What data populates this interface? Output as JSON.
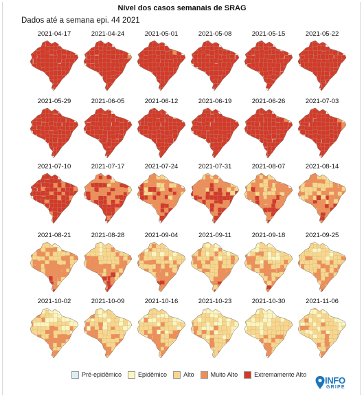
{
  "title": "Nível dos casos semanais de SRAG",
  "subtitle": "Dados até a semana epi. 44 2021",
  "colors": {
    "pre_epidemico": "#dbeef5",
    "epidemico": "#fbf6c0",
    "alto": "#f8d78c",
    "muito_alto": "#ef8e57",
    "extremamente_alto": "#d23a2a"
  },
  "legend": [
    {
      "label": "Pré-epidêmico",
      "color": "#dbeef5"
    },
    {
      "label": "Epidêmico",
      "color": "#fbf6c0"
    },
    {
      "label": "Alto",
      "color": "#f8d78c"
    },
    {
      "label": "Muito Alto",
      "color": "#ef8e57"
    },
    {
      "label": "Extremamente Alto",
      "color": "#d23a2a"
    }
  ],
  "maps": [
    {
      "date": "2021-04-17",
      "level": 4.4
    },
    {
      "date": "2021-04-24",
      "level": 4.4
    },
    {
      "date": "2021-05-01",
      "level": 4.5
    },
    {
      "date": "2021-05-08",
      "level": 4.5
    },
    {
      "date": "2021-05-15",
      "level": 4.5
    },
    {
      "date": "2021-05-22",
      "level": 4.5
    },
    {
      "date": "2021-05-29",
      "level": 4.5
    },
    {
      "date": "2021-06-05",
      "level": 4.4
    },
    {
      "date": "2021-06-12",
      "level": 4.5
    },
    {
      "date": "2021-06-19",
      "level": 4.4
    },
    {
      "date": "2021-06-26",
      "level": 4.4
    },
    {
      "date": "2021-07-03",
      "level": 4.3
    },
    {
      "date": "2021-07-10",
      "level": 4.0
    },
    {
      "date": "2021-07-17",
      "level": 3.6
    },
    {
      "date": "2021-07-24",
      "level": 3.2
    },
    {
      "date": "2021-07-31",
      "level": 3.3
    },
    {
      "date": "2021-08-07",
      "level": 3.0
    },
    {
      "date": "2021-08-14",
      "level": 3.0
    },
    {
      "date": "2021-08-21",
      "level": 2.6
    },
    {
      "date": "2021-08-28",
      "level": 2.6
    },
    {
      "date": "2021-09-04",
      "level": 2.4
    },
    {
      "date": "2021-09-11",
      "level": 2.4
    },
    {
      "date": "2021-09-18",
      "level": 2.3
    },
    {
      "date": "2021-09-25",
      "level": 2.3
    },
    {
      "date": "2021-10-02",
      "level": 2.1
    },
    {
      "date": "2021-10-09",
      "level": 2.2
    },
    {
      "date": "2021-10-16",
      "level": 2.1
    },
    {
      "date": "2021-10-23",
      "level": 2.0
    },
    {
      "date": "2021-10-30",
      "level": 2.0
    },
    {
      "date": "2021-11-06",
      "level": 2.0
    }
  ],
  "logo": {
    "line1": "INFO",
    "line2": "GRIPE",
    "color": "#1b75bc"
  }
}
